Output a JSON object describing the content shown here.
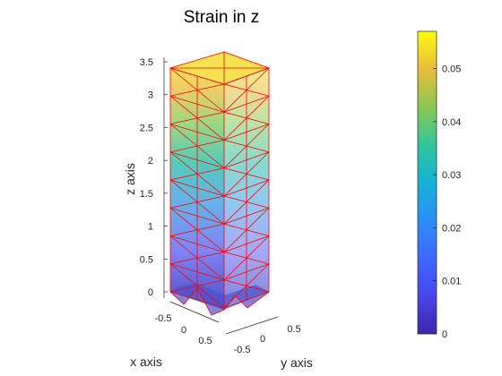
{
  "chart_data": {
    "type": "surface3d",
    "title": "Strain in z",
    "xlabel": "x axis",
    "ylabel": "y axis",
    "zlabel": "z axis",
    "x_ticks": [
      "-0.5",
      "0",
      "0.5"
    ],
    "y_ticks": [
      "-0.5",
      "0",
      "0.5"
    ],
    "z_ticks": [
      "0",
      "0.5",
      "1",
      "1.5",
      "2",
      "2.5",
      "3",
      "3.5"
    ],
    "z_tick_values": [
      0,
      0.5,
      1,
      1.5,
      2,
      2.5,
      3,
      3.5
    ],
    "xlim": [
      -0.5,
      0.5
    ],
    "ylim": [
      -0.5,
      0.5
    ],
    "zlim": [
      0,
      3.5
    ],
    "mesh_color": "#ff0000",
    "colormap": "parula",
    "colorbar": {
      "ticks": [
        "0",
        "0.01",
        "0.02",
        "0.03",
        "0.04",
        "0.05"
      ],
      "tick_values": [
        0,
        0.01,
        0.02,
        0.03,
        0.04,
        0.05
      ],
      "range": [
        0,
        0.057
      ],
      "location": "right"
    },
    "strain_range": [
      0,
      0.057
    ]
  }
}
